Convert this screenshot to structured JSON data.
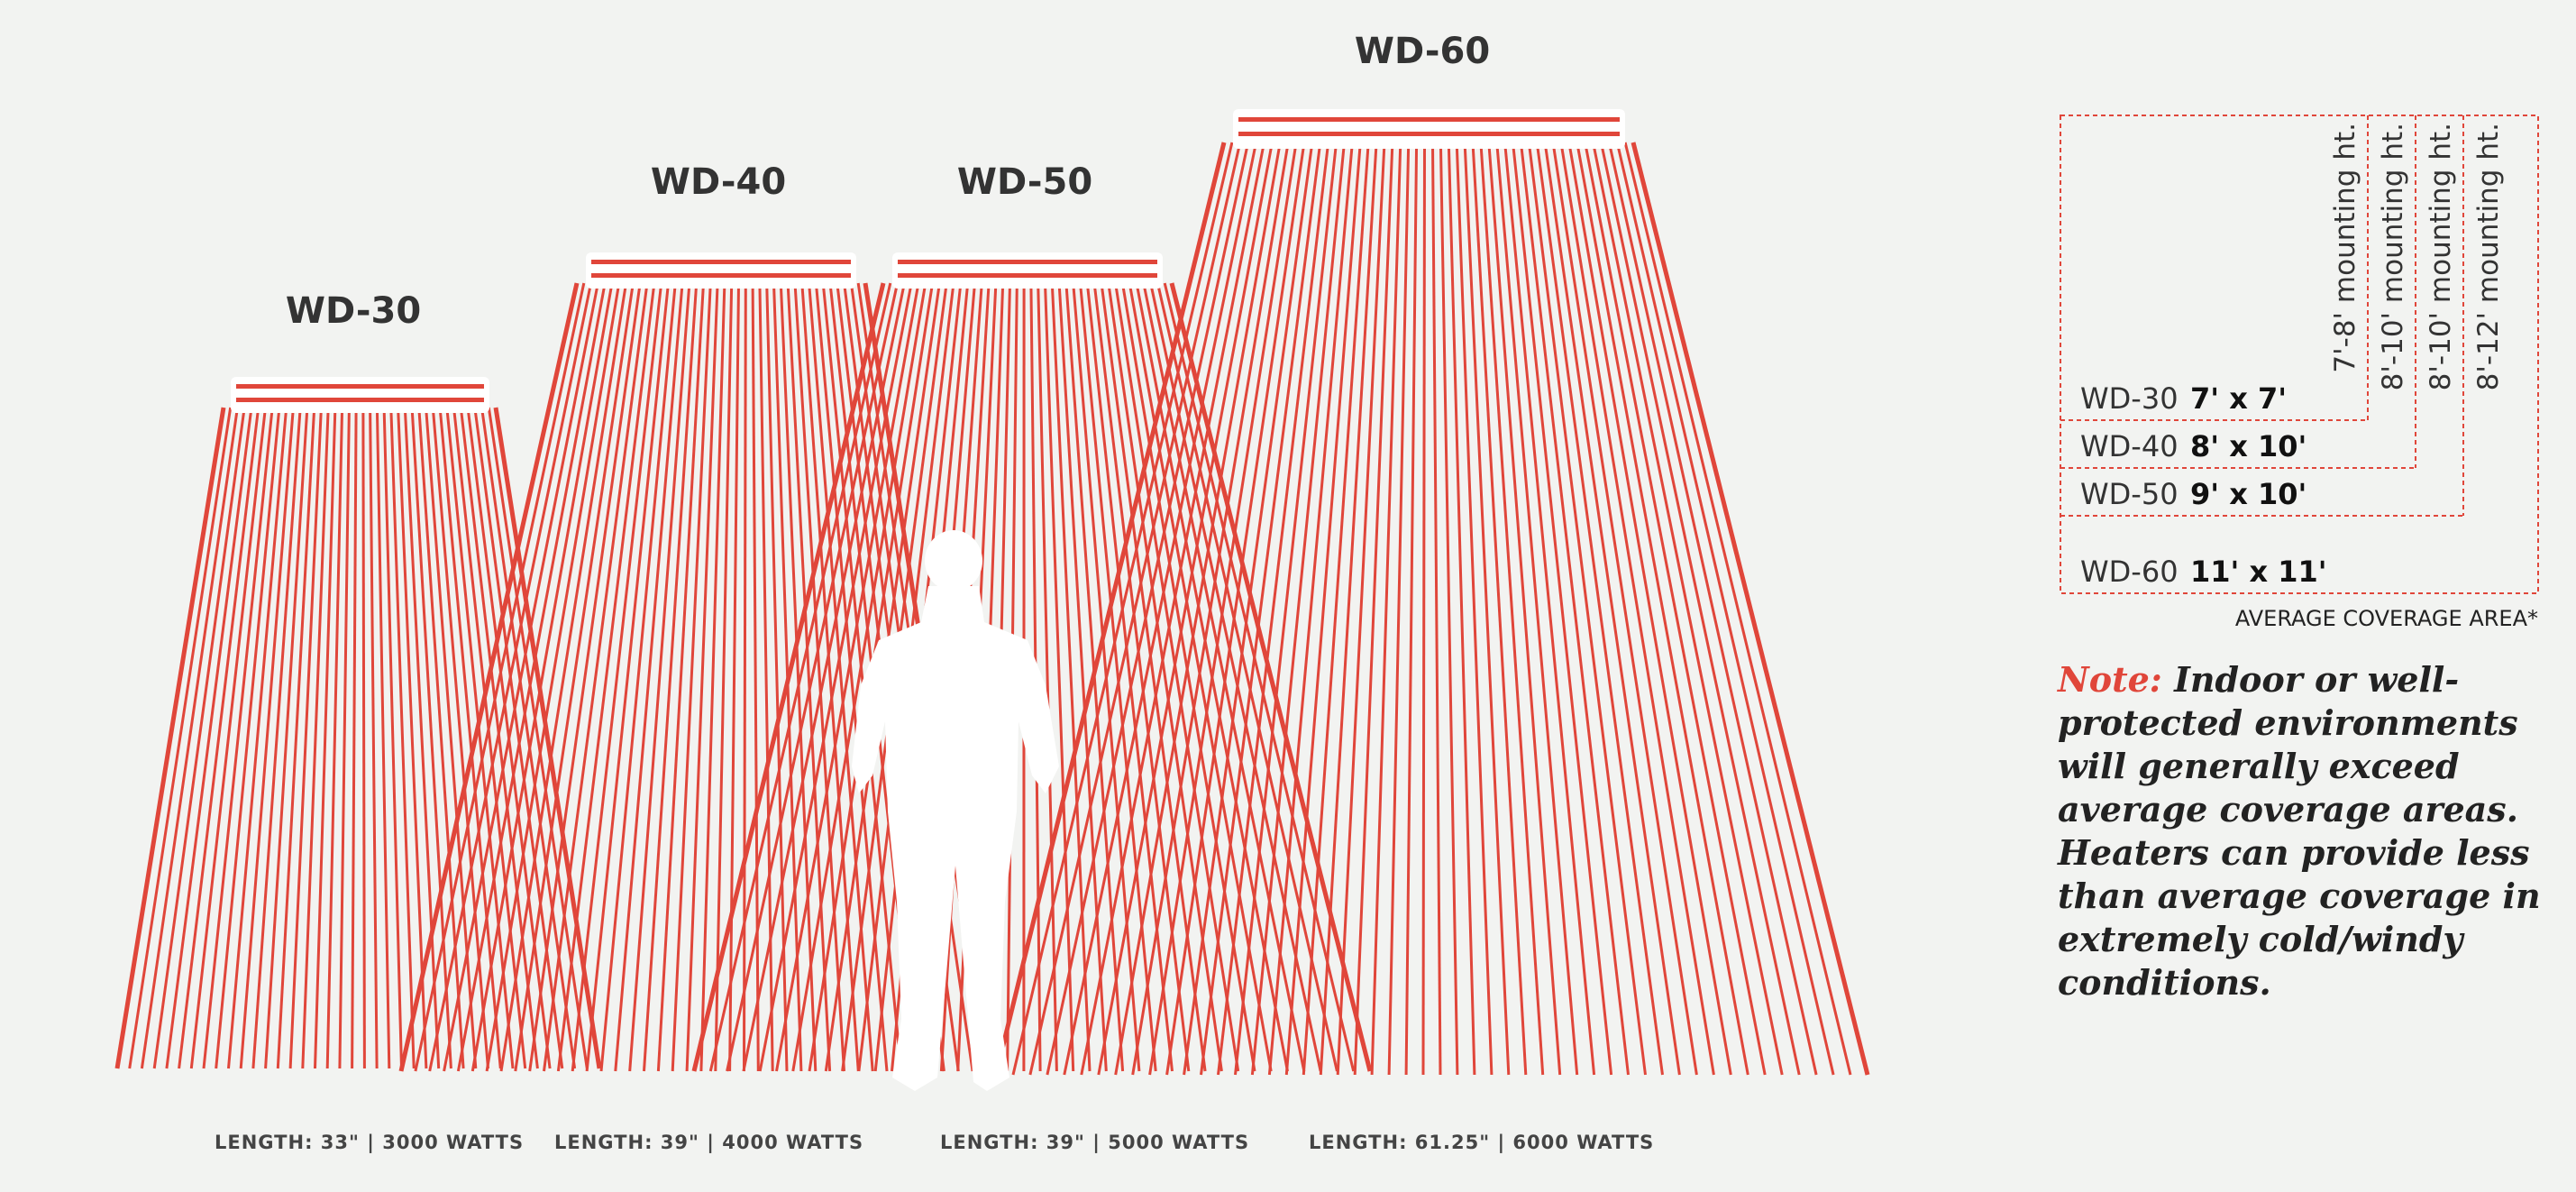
{
  "colors": {
    "background": "#f2f3f1",
    "ray": "#e0463a",
    "heater_body": "#ffffff",
    "heater_stripe": "#e0463a",
    "legend_border": "#e0463a",
    "silhouette": "#ffffff"
  },
  "heaters": [
    {
      "model": "WD-30",
      "spec": "LENGTH: 33\" | 3000 WATTS"
    },
    {
      "model": "WD-40",
      "spec": "LENGTH: 39\" | 4000 WATTS"
    },
    {
      "model": "WD-50",
      "spec": "LENGTH: 39\" | 5000 WATTS"
    },
    {
      "model": "WD-60",
      "spec": "LENGTH: 61.25\" | 6000 WATTS"
    }
  ],
  "legend": {
    "rows": [
      {
        "model": "WD-30",
        "size": "7' x 7'",
        "mounting": "7'-8' mounting ht."
      },
      {
        "model": "WD-40",
        "size": "8' x 10'",
        "mounting": "8'-10' mounting ht."
      },
      {
        "model": "WD-50",
        "size": "9' x 10'",
        "mounting": "8'-10' mounting ht."
      },
      {
        "model": "WD-60",
        "size": "11' x 11'",
        "mounting": "8'-12' mounting ht."
      }
    ],
    "caption": "AVERAGE COVERAGE AREA*"
  },
  "note": {
    "label": "Note:",
    "text": "Indoor or well-protected environments will generally exceed average coverage areas. Heaters can provide less than average coverage in extremely cold/windy conditions."
  }
}
